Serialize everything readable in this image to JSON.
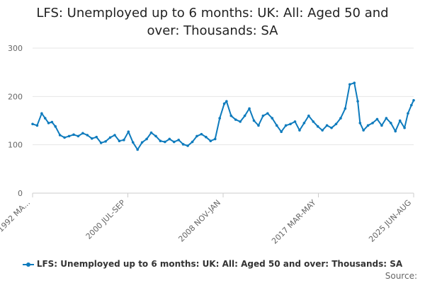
{
  "title_line1": "LFS: Unemployed up to 6 months: UK: All: Aged 50 and",
  "title_line2": "over: Thousands: SA",
  "source_label": "Source:",
  "colors": {
    "series": "#0e7bbd",
    "grid": "#e6e6e6",
    "axis_text": "#666666"
  },
  "chart_data": {
    "type": "line",
    "title": "LFS: Unemployed up to 6 months: UK: All: Aged 50 and over: Thousands: SA",
    "xlabel": "",
    "ylabel": "",
    "ylim": [
      0,
      300
    ],
    "yticks": [
      0,
      100,
      200,
      300
    ],
    "xtick_labels": [
      "1992 MA...",
      "2000 JUL-SEP",
      "2008 NOV-JAN",
      "2017 MAR-MAY",
      "2025 JUN-AUG"
    ],
    "grid": "horizontal",
    "legend_position": "bottom",
    "series": [
      {
        "name": "LFS: Unemployed up to 6 months: UK: All: Aged 50 and over: Thousands: SA",
        "x": [
          1992.2,
          1992.6,
          1993.0,
          1993.3,
          1993.6,
          1993.9,
          1994.2,
          1994.6,
          1995.0,
          1995.4,
          1995.8,
          1996.2,
          1996.6,
          1997.0,
          1997.4,
          1997.8,
          1998.2,
          1998.6,
          1999.0,
          1999.4,
          1999.8,
          2000.2,
          2000.6,
          2001.0,
          2001.4,
          2001.8,
          2002.2,
          2002.6,
          2003.0,
          2003.4,
          2003.8,
          2004.2,
          2004.6,
          2005.0,
          2005.4,
          2005.8,
          2006.2,
          2006.6,
          2007.0,
          2007.4,
          2007.8,
          2008.2,
          2008.6,
          2009.0,
          2009.2,
          2009.6,
          2010.0,
          2010.4,
          2010.8,
          2011.2,
          2011.6,
          2012.0,
          2012.4,
          2012.8,
          2013.2,
          2013.6,
          2014.0,
          2014.4,
          2014.8,
          2015.2,
          2015.6,
          2016.0,
          2016.4,
          2016.8,
          2017.2,
          2017.6,
          2018.0,
          2018.4,
          2018.8,
          2019.2,
          2019.6,
          2020.0,
          2020.4,
          2020.7,
          2020.9,
          2021.2,
          2021.6,
          2022.0,
          2022.4,
          2022.8,
          2023.2,
          2023.6,
          2024.0,
          2024.4,
          2024.8,
          2025.1,
          2025.4,
          2025.6
        ],
        "values": [
          143,
          140,
          165,
          155,
          145,
          147,
          138,
          120,
          115,
          118,
          121,
          118,
          124,
          120,
          113,
          116,
          104,
          107,
          115,
          120,
          108,
          110,
          127,
          105,
          90,
          105,
          112,
          125,
          118,
          108,
          106,
          112,
          106,
          110,
          101,
          98,
          106,
          118,
          122,
          116,
          108,
          112,
          155,
          185,
          190,
          160,
          152,
          148,
          160,
          175,
          150,
          140,
          160,
          165,
          155,
          140,
          127,
          140,
          143,
          148,
          130,
          145,
          160,
          148,
          138,
          130,
          140,
          135,
          143,
          155,
          175,
          225,
          228,
          190,
          145,
          130,
          140,
          145,
          153,
          140,
          155,
          145,
          128,
          150,
          135,
          165,
          182,
          192
        ]
      }
    ]
  }
}
